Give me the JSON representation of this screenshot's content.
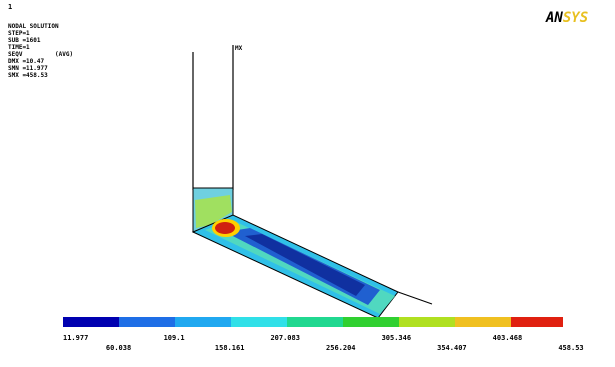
{
  "window_number": "1",
  "info": {
    "lines": [
      "NODAL SOLUTION",
      "STEP=1",
      "SUB =1601",
      "TIME=1",
      "SEQV",
      "(AVG)",
      "DMX =10.47",
      "SMN =11.977",
      "SMX =458.53"
    ]
  },
  "max_marker": "MX",
  "logo": {
    "part1": "AN",
    "part2": "SYS"
  },
  "legend": {
    "labels": [
      "11.977",
      "60.038",
      "109.1",
      "158.161",
      "207.083",
      "256.204",
      "305.346",
      "354.407",
      "403.468",
      "458.53"
    ]
  }
}
